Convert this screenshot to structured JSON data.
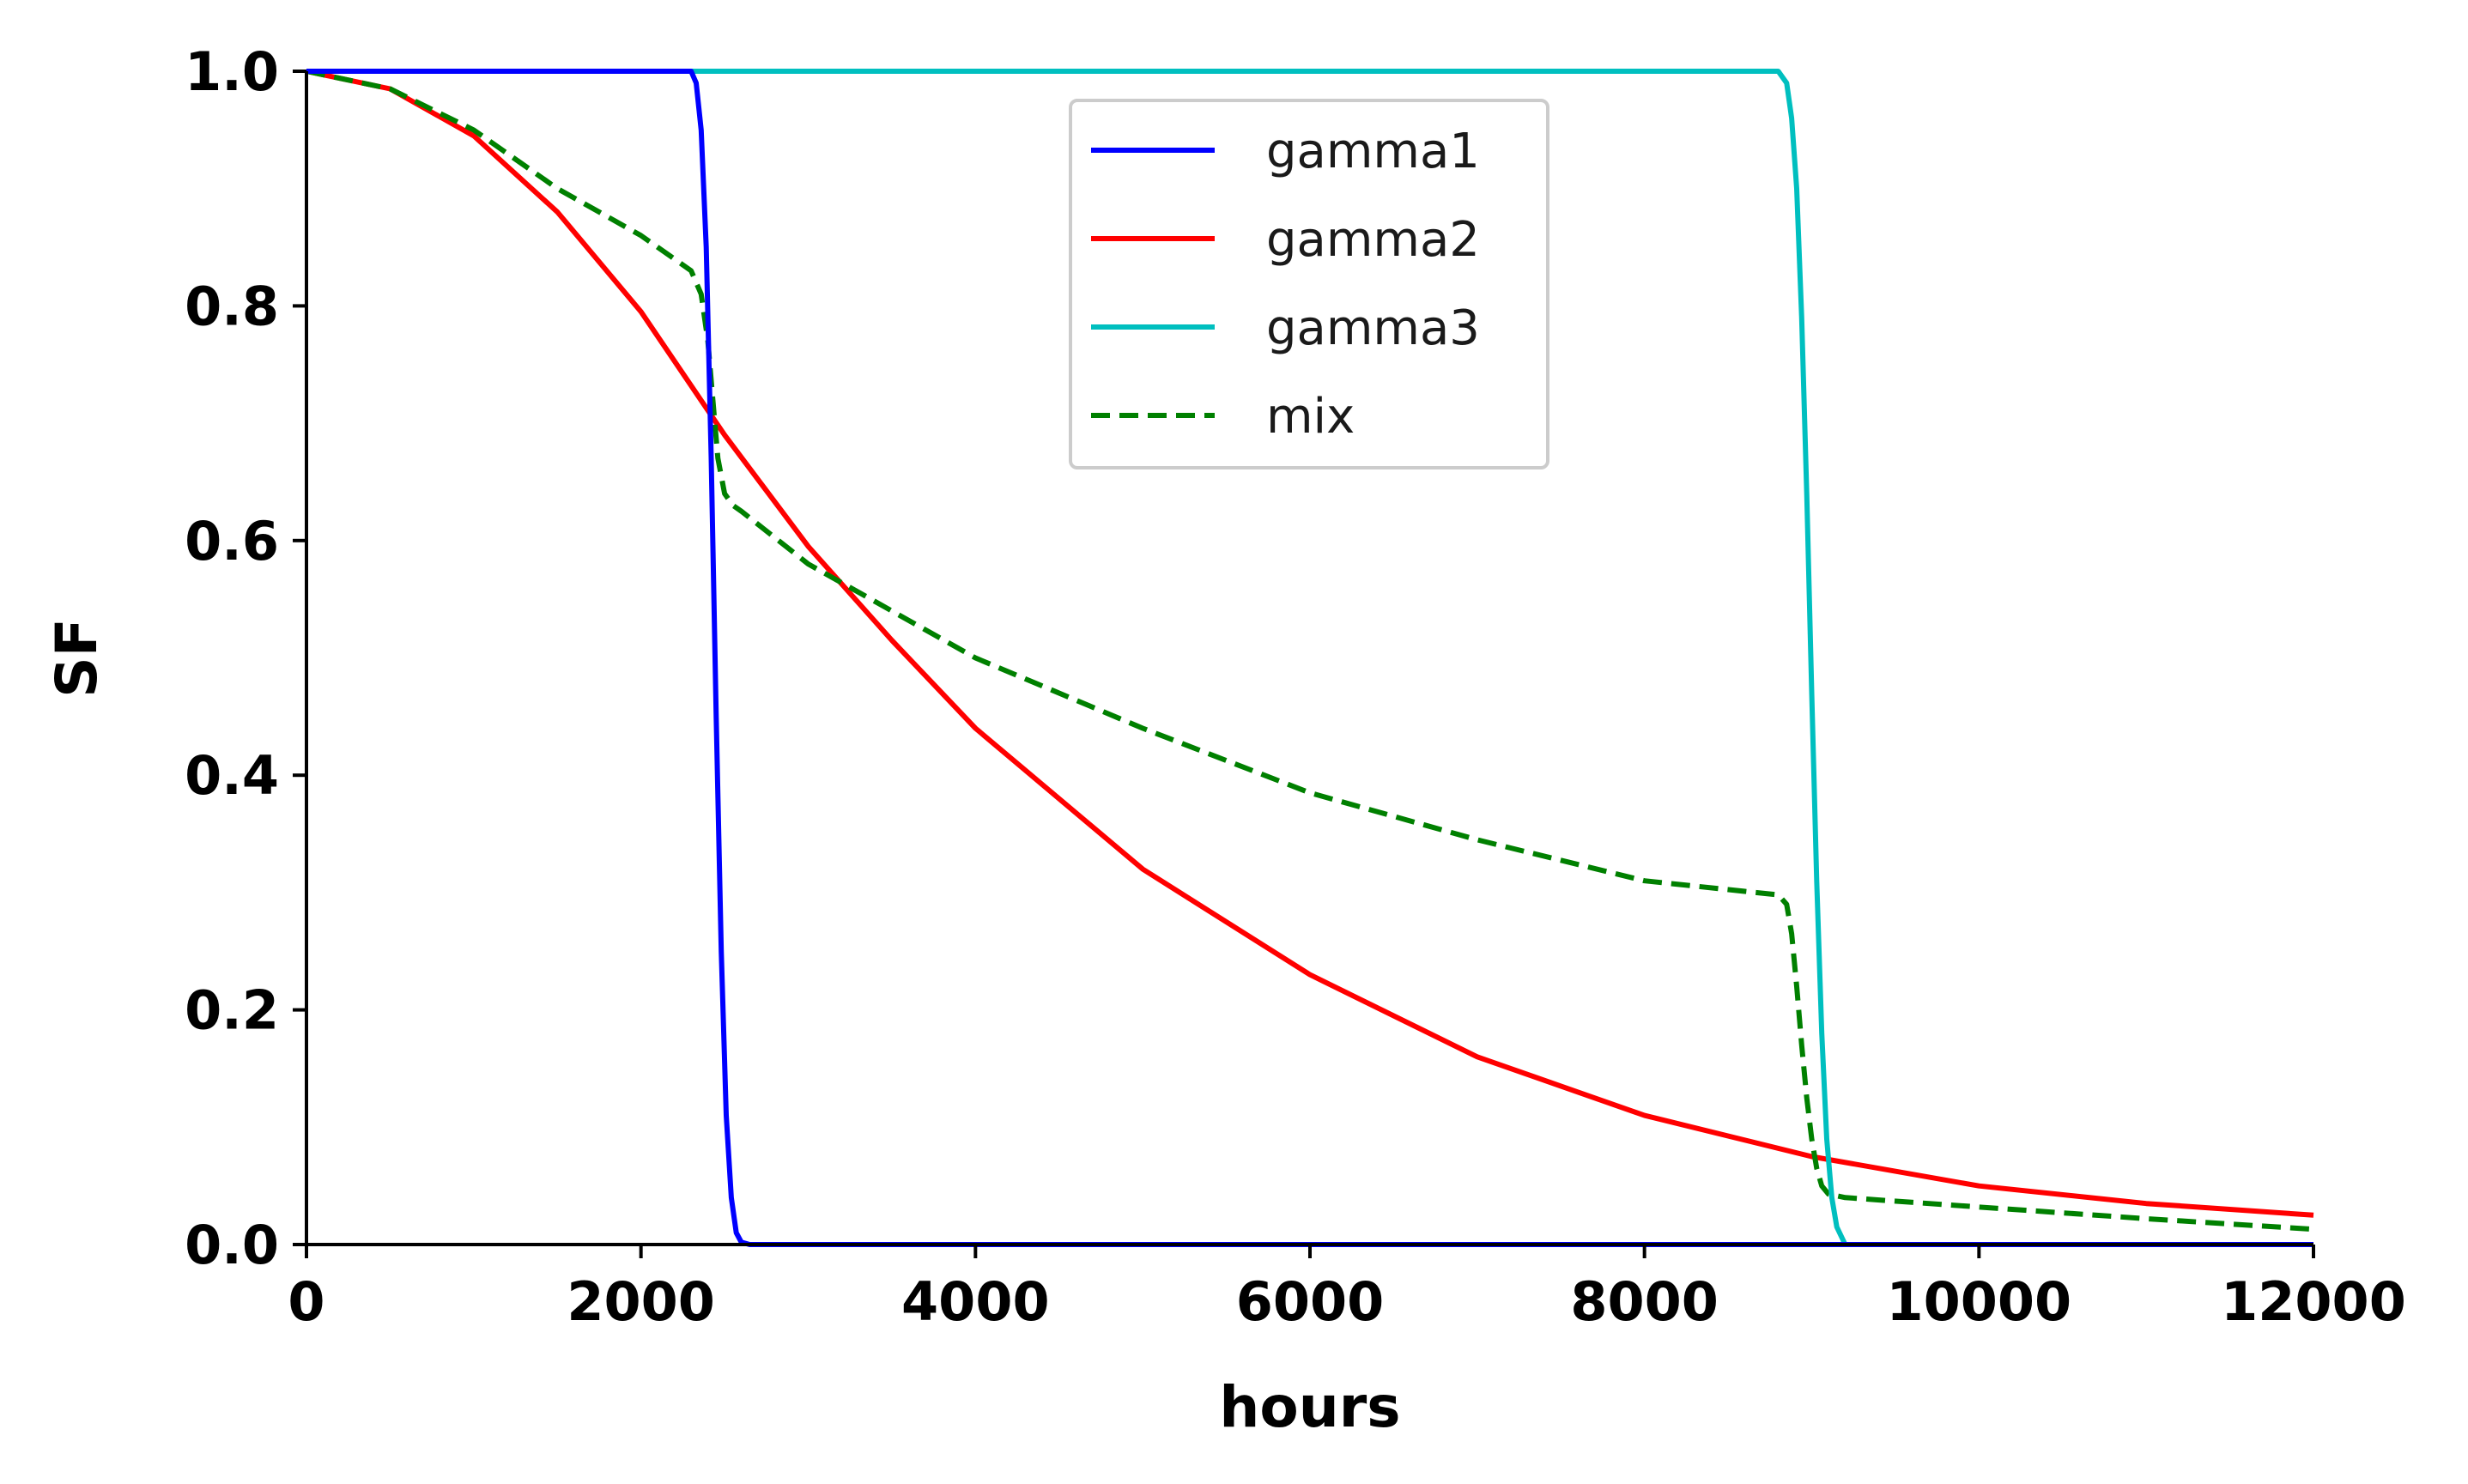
{
  "chart_data": {
    "type": "line",
    "xlabel": "hours",
    "ylabel": "SF",
    "xlim": [
      0,
      12000
    ],
    "ylim": [
      0,
      1.0
    ],
    "xticks": [
      0,
      2000,
      4000,
      6000,
      8000,
      10000,
      12000
    ],
    "xtick_labels": [
      "0",
      "2000",
      "4000",
      "6000",
      "8000",
      "10000",
      "12000"
    ],
    "yticks": [
      0.0,
      0.2,
      0.4,
      0.6,
      0.8,
      1.0
    ],
    "ytick_labels": [
      "0.0",
      "0.2",
      "0.4",
      "0.6",
      "0.8",
      "1.0"
    ],
    "grid": false,
    "legend_position": "top-center",
    "series": [
      {
        "name": "gamma1",
        "color": "#0000ff",
        "style": "solid",
        "x": [
          0,
          2300,
          2330,
          2360,
          2390,
          2420,
          2450,
          2480,
          2510,
          2540,
          2570,
          2600,
          2650,
          12000
        ],
        "y": [
          1.0,
          1.0,
          0.99,
          0.95,
          0.85,
          0.67,
          0.45,
          0.25,
          0.11,
          0.04,
          0.01,
          0.002,
          0.0,
          0.0
        ]
      },
      {
        "name": "gamma2",
        "color": "#ff0000",
        "style": "solid",
        "x": [
          0,
          500,
          1000,
          1500,
          2000,
          2500,
          3000,
          3500,
          4000,
          5000,
          6000,
          7000,
          8000,
          9000,
          10000,
          11000,
          12000
        ],
        "y": [
          1.0,
          0.985,
          0.945,
          0.88,
          0.795,
          0.69,
          0.595,
          0.515,
          0.44,
          0.32,
          0.23,
          0.16,
          0.11,
          0.075,
          0.05,
          0.035,
          0.025
        ]
      },
      {
        "name": "gamma3",
        "color": "#00bfbf",
        "style": "solid",
        "x": [
          0,
          8800,
          8850,
          8880,
          8910,
          8940,
          8970,
          9000,
          9030,
          9060,
          9090,
          9120,
          9150,
          9200,
          12000
        ],
        "y": [
          1.0,
          1.0,
          0.99,
          0.96,
          0.9,
          0.79,
          0.64,
          0.47,
          0.31,
          0.18,
          0.09,
          0.04,
          0.015,
          0.0,
          0.0
        ]
      },
      {
        "name": "mix",
        "color": "#008000",
        "style": "dashed",
        "x": [
          0,
          500,
          1000,
          1500,
          2000,
          2300,
          2360,
          2400,
          2430,
          2460,
          2500,
          2550,
          2600,
          3000,
          3500,
          4000,
          5000,
          6000,
          7000,
          8000,
          8800,
          8850,
          8880,
          8910,
          8940,
          8970,
          9000,
          9030,
          9060,
          9100,
          9200,
          10000,
          11000,
          12000
        ],
        "y": [
          1.0,
          0.985,
          0.95,
          0.9,
          0.86,
          0.83,
          0.81,
          0.77,
          0.72,
          0.67,
          0.64,
          0.63,
          0.625,
          0.58,
          0.54,
          0.5,
          0.44,
          0.385,
          0.345,
          0.31,
          0.298,
          0.29,
          0.265,
          0.22,
          0.17,
          0.125,
          0.09,
          0.065,
          0.05,
          0.043,
          0.04,
          0.032,
          0.022,
          0.013
        ]
      }
    ]
  }
}
